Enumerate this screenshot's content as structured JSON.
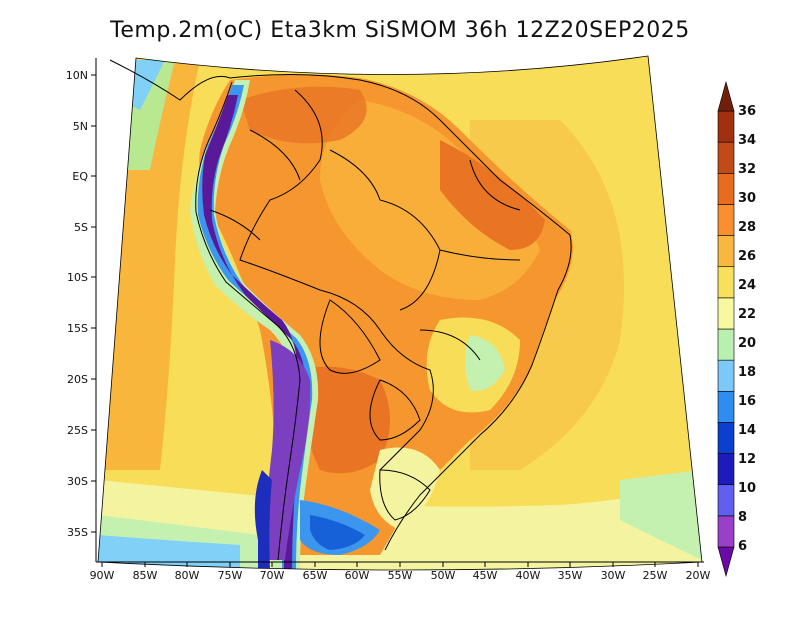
{
  "title": "Temp.2m(oC) Eta3km SiSMOM 36h 12Z20SEP2025",
  "lat_labels": [
    "10N",
    "5N",
    "EQ",
    "5S",
    "10S",
    "15S",
    "20S",
    "25S",
    "30S",
    "35S"
  ],
  "lon_labels": [
    "90W",
    "85W",
    "80W",
    "75W",
    "70W",
    "65W",
    "60W",
    "55W",
    "50W",
    "45W",
    "40W",
    "35W",
    "30W",
    "25W",
    "20W"
  ],
  "colorbar": {
    "labels": [
      "36",
      "34",
      "32",
      "30",
      "28",
      "26",
      "24",
      "22",
      "20",
      "18",
      "16",
      "14",
      "12",
      "10",
      "8",
      "6"
    ],
    "colors_low_to_high": [
      "#6a0aa8",
      "#9a3fc8",
      "#6060f0",
      "#1c1cbc",
      "#0a3fd0",
      "#2f8cf0",
      "#7cc8f8",
      "#b8f0b0",
      "#f8f8a0",
      "#f8e05c",
      "#f8b840",
      "#f89030",
      "#e86c20",
      "#c04a18",
      "#a03010",
      "#702008"
    ],
    "colors_map": {
      "below_8": "#5a189a",
      "8_10": "#7b3fbf",
      "10_12": "#5a5aea",
      "12_14": "#1e2ebc",
      "14_16": "#1660d8",
      "16_18": "#3c96ee",
      "18_20": "#80d0f8",
      "20_22": "#c4f0b0",
      "22_24": "#f4f4a0",
      "24_26": "#f8de58",
      "26_28": "#f8b63c",
      "28_30": "#f6962e",
      "30_32": "#e87424",
      "32_34": "#c8561c",
      "34_36": "#a03a14",
      "above_36": "#6a2408"
    }
  }
}
